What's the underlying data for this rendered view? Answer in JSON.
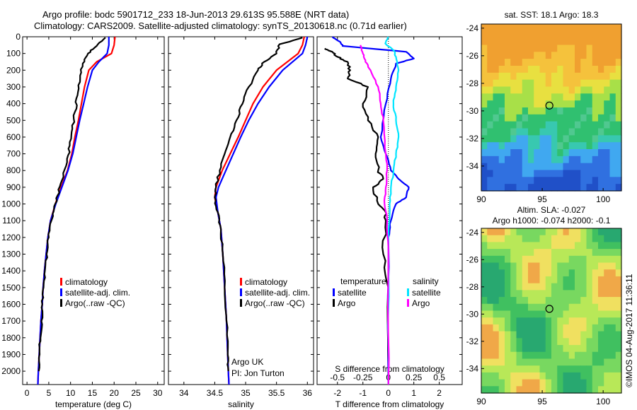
{
  "header": {
    "line1": "Argo profile: bodc 5901712_233 18-Jun-2013 29.613S 95.588E (NRT data)",
    "line2": "Climatology: CARS2009. Satellite-adjusted climatology: synTS_20130618.nc (0.71d earlier)"
  },
  "colors": {
    "climatology": "#ff0000",
    "satellite": "#0000ff",
    "argo": "#000000",
    "sal_satellite": "#00e5ff",
    "sal_argo": "#ff00ff"
  },
  "chart_data": [
    {
      "type": "line",
      "name": "temperature-profile",
      "xlabel": "temperature (deg C)",
      "ylabel": "",
      "xlim": [
        -1,
        31.5
      ],
      "ylim": [
        0,
        2080
      ],
      "xticks": [
        0,
        5,
        10,
        15,
        20,
        25,
        30
      ],
      "yticks": [
        0,
        100,
        200,
        300,
        400,
        500,
        600,
        700,
        800,
        900,
        1000,
        1100,
        1200,
        1300,
        1400,
        1500,
        1600,
        1700,
        1800,
        1900,
        2000
      ],
      "legend": [
        "climatology",
        "satellite-adj. clim.",
        "Argo(..raw -QC)"
      ],
      "series": [
        {
          "name": "climatology",
          "color": "#ff0000",
          "points": [
            [
              20.2,
              0
            ],
            [
              20,
              50
            ],
            [
              19.4,
              100
            ],
            [
              16,
              150
            ],
            [
              14.2,
              200
            ],
            [
              13.2,
              300
            ],
            [
              12.5,
              400
            ],
            [
              11.8,
              500
            ],
            [
              11,
              600
            ],
            [
              10.3,
              700
            ],
            [
              9.3,
              800
            ],
            [
              7.8,
              900
            ],
            [
              6.5,
              1000
            ],
            [
              5.4,
              1100
            ],
            [
              4.8,
              1200
            ],
            [
              4.4,
              1300
            ],
            [
              4,
              1400
            ],
            [
              3.7,
              1500
            ],
            [
              3.5,
              1600
            ],
            [
              3.2,
              1700
            ],
            [
              3,
              1800
            ],
            [
              2.8,
              1900
            ],
            [
              2.6,
              2000
            ],
            [
              2.5,
              2080
            ]
          ]
        },
        {
          "name": "satellite-adj. clim.",
          "color": "#0000ff",
          "points": [
            [
              18.8,
              0
            ],
            [
              18.8,
              50
            ],
            [
              18.4,
              100
            ],
            [
              16.5,
              150
            ],
            [
              15,
              200
            ],
            [
              13.9,
              300
            ],
            [
              13,
              400
            ],
            [
              12.1,
              500
            ],
            [
              11.3,
              600
            ],
            [
              10.5,
              700
            ],
            [
              9.4,
              800
            ],
            [
              8,
              900
            ],
            [
              6.6,
              1000
            ],
            [
              5.4,
              1100
            ],
            [
              4.8,
              1200
            ],
            [
              4.4,
              1300
            ],
            [
              4,
              1400
            ],
            [
              3.7,
              1500
            ],
            [
              3.5,
              1600
            ],
            [
              3.2,
              1700
            ],
            [
              3,
              1800
            ],
            [
              2.8,
              1900
            ],
            [
              2.6,
              2000
            ],
            [
              2.5,
              2080
            ]
          ]
        },
        {
          "name": "Argo(..raw -QC)",
          "color": "#000000",
          "points": [
            [
              18,
              5
            ],
            [
              16,
              55
            ],
            [
              14,
              100
            ],
            [
              12.8,
              160
            ],
            [
              12.2,
              250
            ],
            [
              11.6,
              350
            ],
            [
              11,
              450
            ],
            [
              10.4,
              550
            ],
            [
              9.8,
              650
            ],
            [
              9.2,
              750
            ],
            [
              8,
              860
            ],
            [
              7,
              950
            ],
            [
              6.2,
              1030
            ],
            [
              5.6,
              1100
            ],
            [
              5,
              1200
            ],
            [
              4.5,
              1300
            ],
            [
              4.1,
              1400
            ],
            [
              3.8,
              1500
            ],
            [
              3.5,
              1600
            ],
            [
              3.3,
              1700
            ],
            [
              3.1,
              1800
            ],
            [
              2.9,
              1900
            ],
            [
              2.7,
              2000
            ]
          ]
        }
      ]
    },
    {
      "type": "line",
      "name": "salinity-profile",
      "xlabel": "salinity",
      "xlim": [
        33.75,
        36.1
      ],
      "ylim": [
        0,
        2080
      ],
      "xticks": [
        34,
        34.5,
        35,
        35.5,
        36
      ],
      "xticklabels": [
        "34",
        "34.5",
        "35",
        "35.5",
        "36"
      ],
      "legend": [
        "climatology",
        "satellite-adj. clim.",
        "Argo(..raw -QC)"
      ],
      "annotations": [
        "Argo UK",
        "PI: Jon Turton"
      ],
      "series": [
        {
          "name": "climatology",
          "color": "#ff0000",
          "points": [
            [
              35.95,
              0
            ],
            [
              35.92,
              50
            ],
            [
              35.85,
              100
            ],
            [
              35.5,
              200
            ],
            [
              35.28,
              300
            ],
            [
              35.12,
              400
            ],
            [
              35,
              500
            ],
            [
              34.88,
              600
            ],
            [
              34.75,
              700
            ],
            [
              34.62,
              800
            ],
            [
              34.52,
              900
            ],
            [
              34.5,
              960
            ],
            [
              34.55,
              1050
            ],
            [
              34.6,
              1150
            ],
            [
              34.63,
              1300
            ],
            [
              34.66,
              1500
            ],
            [
              34.69,
              1700
            ],
            [
              34.71,
              1900
            ],
            [
              34.72,
              2000
            ],
            [
              34.73,
              2080
            ]
          ]
        },
        {
          "name": "satellite-adj. clim.",
          "color": "#0000ff",
          "points": [
            [
              36,
              0
            ],
            [
              35.97,
              50
            ],
            [
              35.92,
              100
            ],
            [
              35.6,
              200
            ],
            [
              35.38,
              300
            ],
            [
              35.2,
              400
            ],
            [
              35.05,
              500
            ],
            [
              34.92,
              600
            ],
            [
              34.8,
              700
            ],
            [
              34.68,
              800
            ],
            [
              34.56,
              900
            ],
            [
              34.52,
              960
            ],
            [
              34.55,
              1050
            ],
            [
              34.6,
              1150
            ],
            [
              34.63,
              1300
            ],
            [
              34.66,
              1500
            ],
            [
              34.69,
              1700
            ],
            [
              34.71,
              1900
            ],
            [
              34.72,
              2000
            ],
            [
              34.73,
              2080
            ]
          ]
        },
        {
          "name": "Argo(..raw -QC)",
          "color": "#000000",
          "points": [
            [
              35.92,
              5
            ],
            [
              35.55,
              45
            ],
            [
              35.5,
              100
            ],
            [
              35.3,
              150
            ],
            [
              35.2,
              200
            ],
            [
              35.05,
              300
            ],
            [
              34.95,
              400
            ],
            [
              34.85,
              500
            ],
            [
              34.75,
              600
            ],
            [
              34.66,
              700
            ],
            [
              34.58,
              800
            ],
            [
              34.52,
              900
            ],
            [
              34.5,
              960
            ],
            [
              34.55,
              1050
            ],
            [
              34.6,
              1150
            ],
            [
              34.63,
              1300
            ],
            [
              34.66,
              1500
            ],
            [
              34.69,
              1700
            ],
            [
              34.71,
              1900
            ],
            [
              34.72,
              2000
            ]
          ]
        }
      ]
    },
    {
      "type": "line",
      "name": "difference-profile",
      "xlabel": "T difference from climatology",
      "xlabel_top": "S difference from climatology",
      "xlim": [
        -2.8,
        2.9
      ],
      "ylim": [
        0,
        2080
      ],
      "xticks": [
        -2,
        -1,
        0,
        1,
        2
      ],
      "xtick_labels": [
        "-2",
        "-1",
        "0",
        "1",
        "2"
      ],
      "s_xticks": [
        -0.5,
        -0.25,
        0,
        0.25,
        0.5
      ],
      "s_xtick_labels": [
        "-0.5",
        "-0.25",
        "0",
        "0.25",
        "0.5"
      ],
      "s_scale": 4,
      "legend_titles": [
        "temperature",
        "salinity"
      ],
      "legend": [
        {
          "label": "satellite",
          "color": "#0000ff"
        },
        {
          "label": "Argo",
          "color": "#000000"
        },
        {
          "label": "satellite",
          "color": "#00e5ff"
        },
        {
          "label": "Argo",
          "color": "#ff00ff"
        }
      ],
      "series": [
        {
          "name": "T satellite",
          "color": "#0000ff",
          "points": [
            [
              -2.2,
              0
            ],
            [
              -1.9,
              30
            ],
            [
              -1.8,
              55
            ],
            [
              0.7,
              90
            ],
            [
              1,
              130
            ],
            [
              0.3,
              160
            ],
            [
              0.1,
              250
            ],
            [
              -0.1,
              400
            ],
            [
              -0.3,
              600
            ],
            [
              -0.1,
              700
            ],
            [
              0.1,
              800
            ],
            [
              0.4,
              850
            ],
            [
              0.8,
              900
            ],
            [
              0.7,
              960
            ],
            [
              0.3,
              1000
            ],
            [
              0.1,
              1100
            ],
            [
              0,
              1200
            ],
            [
              0,
              2080
            ]
          ]
        },
        {
          "name": "T Argo",
          "color": "#000000",
          "points": [
            [
              -2.5,
              70
            ],
            [
              -2.2,
              90
            ],
            [
              -2,
              120
            ],
            [
              -1.6,
              150
            ],
            [
              -1.5,
              200
            ],
            [
              -1.6,
              250
            ],
            [
              -0.8,
              300
            ],
            [
              -1,
              400
            ],
            [
              -0.8,
              500
            ],
            [
              -0.4,
              600
            ],
            [
              -0.5,
              700
            ],
            [
              -0.4,
              800
            ],
            [
              -0.2,
              850
            ],
            [
              -0.6,
              900
            ],
            [
              -0.4,
              1000
            ],
            [
              -0.1,
              1050
            ],
            [
              -0.1,
              1100
            ],
            [
              -0.2,
              1300
            ],
            [
              0,
              1500
            ],
            [
              0,
              2080
            ]
          ]
        },
        {
          "name": "S satellite",
          "color": "#00e5ff",
          "points": [
            [
              0,
              0
            ],
            [
              -0.12,
              40
            ],
            [
              0.2,
              80
            ],
            [
              0.3,
              120
            ],
            [
              0.4,
              200
            ],
            [
              0.3,
              300
            ],
            [
              0.2,
              400
            ],
            [
              0.3,
              500
            ],
            [
              0.4,
              600
            ],
            [
              0.3,
              700
            ],
            [
              0.2,
              800
            ],
            [
              0.1,
              900
            ],
            [
              0.05,
              1000
            ],
            [
              0,
              1200
            ],
            [
              0,
              2080
            ]
          ]
        },
        {
          "name": "S Argo",
          "color": "#ff00ff",
          "points": [
            [
              -1.1,
              50
            ],
            [
              -1,
              100
            ],
            [
              -0.9,
              150
            ],
            [
              -0.7,
              200
            ],
            [
              -0.4,
              300
            ],
            [
              -0.3,
              400
            ],
            [
              -0.2,
              500
            ],
            [
              -0.1,
              700
            ],
            [
              -0.05,
              800
            ],
            [
              -0.1,
              900
            ],
            [
              -0.15,
              1000
            ],
            [
              -0.05,
              1100
            ],
            [
              0,
              1300
            ],
            [
              0,
              2080
            ]
          ]
        }
      ]
    },
    {
      "type": "heatmap",
      "name": "sst-map",
      "title": "sat. SST: 18.1  Argo: 18.3",
      "xlim": [
        90,
        101.5
      ],
      "ylim": [
        -35.8,
        -23.7
      ],
      "xticks": [
        90,
        95,
        100
      ],
      "yticks": [
        -24,
        -26,
        -28,
        -30,
        -32,
        -34
      ],
      "marker": {
        "lon": 95.588,
        "lat": -29.613
      }
    },
    {
      "type": "heatmap",
      "name": "sla-map",
      "title": "Altim. SLA: -0.027",
      "subtitle": "Argo h1000: -0.074 h2000: -0.1",
      "xlim": [
        90,
        101.5
      ],
      "ylim": [
        -35.8,
        -23.7
      ],
      "xticks": [
        90,
        95,
        100
      ],
      "yticks": [
        -24,
        -26,
        -28,
        -30,
        -32,
        -34
      ],
      "marker": {
        "lon": 95.588,
        "lat": -29.613
      }
    }
  ],
  "credit": "©IMOS 04-Aug-2017 11:36:11"
}
